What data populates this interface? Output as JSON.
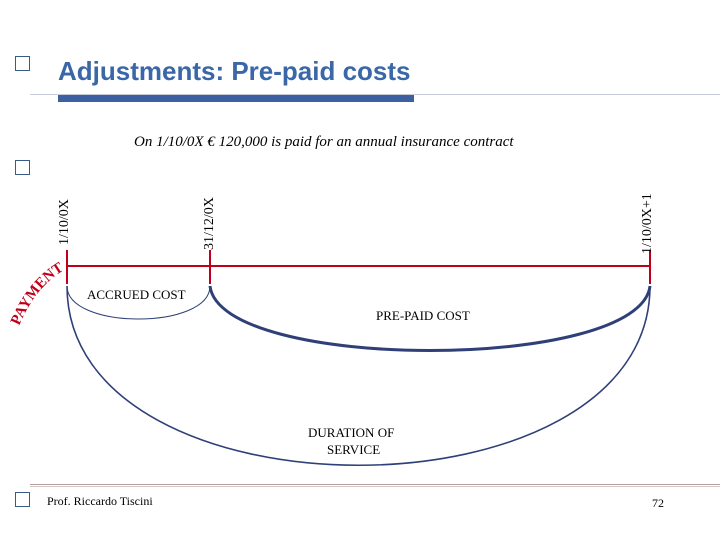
{
  "slide": {
    "title": "Adjustments: Pre-paid costs",
    "subtitle": "On 1/10/0X € 120,000 is paid for an annual insurance contract",
    "dates": {
      "start": "1/10/0X",
      "year_end": "31/12/0X",
      "end": "1/10/0X+1"
    },
    "labels": {
      "payment": "PAYMENT",
      "accrued_cost": "ACCRUED COST",
      "prepaid_cost": "PRE-PAID COST",
      "duration_line1": "DURATION OF",
      "duration_line2": "SERVICE"
    },
    "footer": {
      "author": "Prof. Riccardo Tiscini",
      "page_number": "72"
    }
  },
  "colors": {
    "title": "#3a67a8",
    "accent_bar": "#3b5fa0",
    "timeline": "#c0001a",
    "arc": "#2f3f78"
  }
}
